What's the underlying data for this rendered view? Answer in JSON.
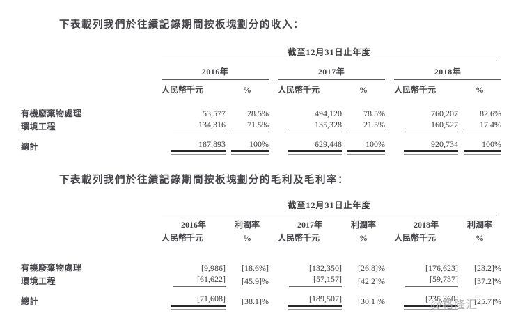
{
  "colors": {
    "text": "#3c3c3e",
    "bold_text": "#46464a",
    "rule": "#5a5a5e",
    "double_rule_dark": "#27272a",
    "double_rule_gray": "#97979b",
    "watermark": "#b1b1b3",
    "background": "#ffffff"
  },
  "intro": {
    "revenue": "下表載列我們於往績記錄期間按板塊劃分的收入：",
    "gross_profit": "下表載列我們於往績記錄期間按板塊劃分的毛利及毛利率："
  },
  "revenue_table": {
    "period_header": "截至12月31日止年度",
    "year_groups": [
      {
        "year": "2016年",
        "amount_label": "人民幣千元",
        "pct_label": "%"
      },
      {
        "year": "2017年",
        "amount_label": "人民幣千元",
        "pct_label": "%"
      },
      {
        "year": "2018年",
        "amount_label": "人民幣千元",
        "pct_label": "%"
      }
    ],
    "rows": [
      {
        "label": "有機廢棄物處理",
        "values": [
          "53,577",
          "28.5%",
          "494,120",
          "78.5%",
          "760,207",
          "82.6%"
        ]
      },
      {
        "label": "環境工程",
        "values": [
          "134,316",
          "71.5%",
          "135,328",
          "21.5%",
          "160,527",
          "17.4%"
        ]
      }
    ],
    "total": {
      "label": "總計",
      "values": [
        "187,893",
        "100%",
        "629,448",
        "100%",
        "920,734",
        "100%"
      ]
    }
  },
  "gross_profit_table": {
    "period_header": "截至12月31日止年度",
    "year_groups": [
      {
        "year": "2016年",
        "margin_label": "利潤率",
        "amount_label": "人民幣千元",
        "pct_label": "%"
      },
      {
        "year": "2017年",
        "margin_label": "利潤率",
        "amount_label": "人民幣千元",
        "pct_label": "%"
      },
      {
        "year": "2018年",
        "margin_label": "利潤率",
        "amount_label": "人民幣千元",
        "pct_label": "%"
      }
    ],
    "rows": [
      {
        "label": "有機廢棄物處理",
        "values": [
          "[9,986]",
          "[18.6%]",
          "[132,350]",
          "[26.8]%",
          "[176,623]",
          "[23.2]%"
        ]
      },
      {
        "label": "環境工程",
        "values": [
          "[61,622]",
          "[45.9]%",
          "[57,157]",
          "[42.2]%",
          "[59,737]",
          "[37.2]%"
        ]
      }
    ],
    "total": {
      "label": "總計",
      "values": [
        "[71,608]",
        "[38.1]%",
        "[189,507]",
        "[30.1]%",
        "[236,360]",
        "[25.7]%"
      ]
    }
  },
  "watermark": "@格隆汇"
}
